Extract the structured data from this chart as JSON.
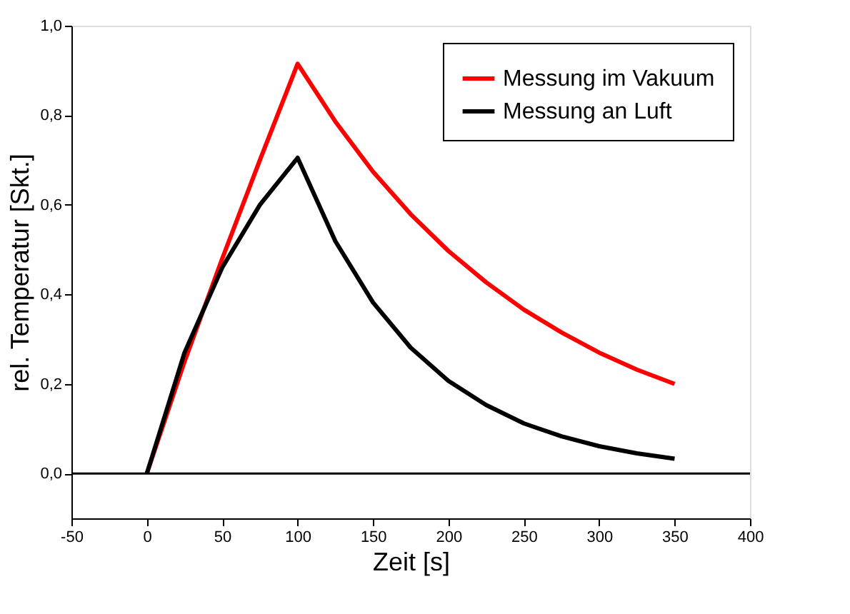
{
  "chart_data": {
    "type": "line",
    "xlabel": "Zeit [s]",
    "ylabel": "rel. Temperatur [Skt.]",
    "x": [
      0,
      25,
      50,
      75,
      100,
      125,
      150,
      175,
      200,
      225,
      250,
      275,
      300,
      325,
      350
    ],
    "series": [
      {
        "name": "Messung im Vakuum",
        "color": "#ff0000",
        "values": [
          0,
          0.25,
          0.48,
          0.7,
          0.915,
          0.786,
          0.674,
          0.579,
          0.497,
          0.427,
          0.366,
          0.315,
          0.27,
          0.232,
          0.2
        ]
      },
      {
        "name": "Messung an Luft",
        "color": "#000000",
        "values": [
          0,
          0.27,
          0.46,
          0.6,
          0.705,
          0.519,
          0.382,
          0.281,
          0.207,
          0.153,
          0.112,
          0.083,
          0.061,
          0.045,
          0.033
        ]
      }
    ],
    "xlim": [
      -50,
      400
    ],
    "xticks": [
      -50,
      0,
      50,
      100,
      150,
      200,
      250,
      300,
      350,
      400
    ],
    "ylim": [
      -0.1,
      1.0
    ],
    "yticks": [
      {
        "value": 0,
        "label": "0,0"
      },
      {
        "value": 0.2,
        "label": "0,2"
      },
      {
        "value": 0.4,
        "label": "0,4"
      },
      {
        "value": 0.6,
        "label": "0,6"
      },
      {
        "value": 0.8,
        "label": "0,8"
      },
      {
        "value": 1.0,
        "label": "1,0"
      }
    ],
    "ref_lines": [
      {
        "axis": "y",
        "value": 0,
        "color": "#000000"
      }
    ],
    "grid": false,
    "legend": "top right",
    "marker": "none",
    "line_style": "solid"
  }
}
